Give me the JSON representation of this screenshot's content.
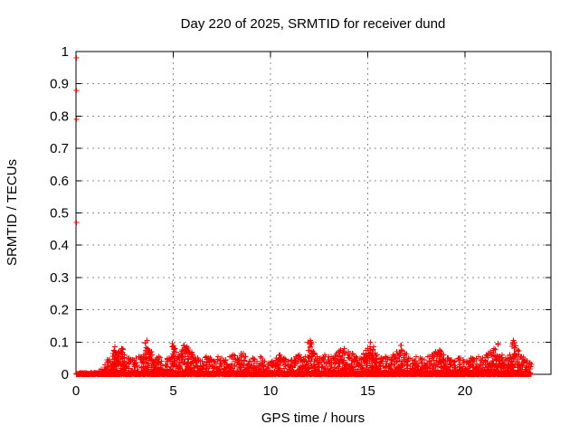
{
  "chart": {
    "title": "Day 220 of 2025, SRMTID for receiver dund",
    "xlabel": "GPS time / hours",
    "ylabel": "SRMTID / TECUs"
  },
  "chart_data": {
    "type": "scatter",
    "title": "Day 220 of 2025, SRMTID for receiver dund",
    "xlabel": "GPS time / hours",
    "ylabel": "SRMTID / TECUs",
    "marker": "plus",
    "marker_color": "#ff0000",
    "border_color": "#000000",
    "grid_color": "#8c8c8c",
    "grid": true,
    "legend": "none",
    "xlim": [
      0,
      24.42
    ],
    "ylim": [
      0,
      1
    ],
    "x_ticks": [
      0,
      5,
      10,
      15,
      20
    ],
    "x_tick_labels": [
      "0",
      "5",
      "10",
      "15",
      "20"
    ],
    "y_ticks": [
      0,
      0.1,
      0.2,
      0.3,
      0.4,
      0.5,
      0.6,
      0.7,
      0.8,
      0.9,
      1
    ],
    "y_tick_labels": [
      "0",
      "0.1",
      "0.2",
      "0.3",
      "0.4",
      "0.5",
      "0.6",
      "0.7",
      "0.8",
      "0.9",
      "1"
    ],
    "outlier_points": [
      [
        0.02,
        0.98
      ],
      [
        0.02,
        0.88
      ],
      [
        0.02,
        0.79
      ],
      [
        0.02,
        0.47
      ]
    ],
    "baseline_band": {
      "x_start": 0.02,
      "x_end": 23.38,
      "x_step": 0.009,
      "y_max": 0.0065
    },
    "scatter_envelope": [
      [
        1.3,
        0.015
      ],
      [
        1.5,
        0.03
      ],
      [
        1.7,
        0.045
      ],
      [
        1.9,
        0.065
      ],
      [
        2.0,
        0.085
      ],
      [
        2.2,
        0.07
      ],
      [
        2.35,
        0.08
      ],
      [
        2.5,
        0.06
      ],
      [
        2.7,
        0.05
      ],
      [
        2.9,
        0.045
      ],
      [
        3.1,
        0.05
      ],
      [
        3.3,
        0.055
      ],
      [
        3.5,
        0.06
      ],
      [
        3.65,
        0.105
      ],
      [
        3.8,
        0.07
      ],
      [
        3.95,
        0.04
      ],
      [
        4.1,
        0.045
      ],
      [
        4.25,
        0.055
      ],
      [
        4.4,
        0.04
      ],
      [
        4.6,
        0.03
      ],
      [
        4.8,
        0.05
      ],
      [
        4.95,
        0.095
      ],
      [
        5.1,
        0.08
      ],
      [
        5.25,
        0.055
      ],
      [
        5.4,
        0.065
      ],
      [
        5.55,
        0.09
      ],
      [
        5.7,
        0.085
      ],
      [
        5.85,
        0.07
      ],
      [
        6.0,
        0.06
      ],
      [
        6.15,
        0.05
      ],
      [
        6.3,
        0.045
      ],
      [
        6.5,
        0.04
      ],
      [
        6.7,
        0.055
      ],
      [
        6.9,
        0.05
      ],
      [
        7.1,
        0.04
      ],
      [
        7.3,
        0.055
      ],
      [
        7.5,
        0.05
      ],
      [
        7.7,
        0.045
      ],
      [
        7.9,
        0.055
      ],
      [
        8.1,
        0.06
      ],
      [
        8.3,
        0.05
      ],
      [
        8.5,
        0.065
      ],
      [
        8.7,
        0.055
      ],
      [
        8.9,
        0.04
      ],
      [
        9.1,
        0.05
      ],
      [
        9.3,
        0.04
      ],
      [
        9.5,
        0.055
      ],
      [
        9.7,
        0.04
      ],
      [
        9.9,
        0.035
      ],
      [
        10.1,
        0.04
      ],
      [
        10.3,
        0.05
      ],
      [
        10.5,
        0.06
      ],
      [
        10.7,
        0.05
      ],
      [
        10.9,
        0.04
      ],
      [
        11.1,
        0.045
      ],
      [
        11.3,
        0.055
      ],
      [
        11.5,
        0.06
      ],
      [
        11.7,
        0.045
      ],
      [
        11.9,
        0.055
      ],
      [
        12.05,
        0.105
      ],
      [
        12.2,
        0.07
      ],
      [
        12.4,
        0.055
      ],
      [
        12.6,
        0.05
      ],
      [
        12.8,
        0.06
      ],
      [
        13.0,
        0.055
      ],
      [
        13.2,
        0.05
      ],
      [
        13.4,
        0.065
      ],
      [
        13.6,
        0.075
      ],
      [
        13.8,
        0.08
      ],
      [
        14.0,
        0.07
      ],
      [
        14.2,
        0.065
      ],
      [
        14.4,
        0.055
      ],
      [
        14.6,
        0.05
      ],
      [
        14.8,
        0.065
      ],
      [
        15.0,
        0.08
      ],
      [
        15.15,
        0.1
      ],
      [
        15.3,
        0.085
      ],
      [
        15.5,
        0.06
      ],
      [
        15.7,
        0.05
      ],
      [
        15.9,
        0.055
      ],
      [
        16.1,
        0.05
      ],
      [
        16.3,
        0.06
      ],
      [
        16.5,
        0.07
      ],
      [
        16.7,
        0.09
      ],
      [
        16.9,
        0.065
      ],
      [
        17.1,
        0.05
      ],
      [
        17.3,
        0.045
      ],
      [
        17.5,
        0.055
      ],
      [
        17.7,
        0.05
      ],
      [
        17.9,
        0.045
      ],
      [
        18.1,
        0.055
      ],
      [
        18.3,
        0.06
      ],
      [
        18.5,
        0.07
      ],
      [
        18.7,
        0.075
      ],
      [
        18.9,
        0.06
      ],
      [
        19.1,
        0.05
      ],
      [
        19.3,
        0.045
      ],
      [
        19.5,
        0.04
      ],
      [
        19.7,
        0.05
      ],
      [
        19.9,
        0.045
      ],
      [
        20.1,
        0.04
      ],
      [
        20.3,
        0.05
      ],
      [
        20.5,
        0.045
      ],
      [
        20.7,
        0.055
      ],
      [
        20.9,
        0.05
      ],
      [
        21.1,
        0.06
      ],
      [
        21.3,
        0.07
      ],
      [
        21.5,
        0.08
      ],
      [
        21.7,
        0.095
      ],
      [
        21.9,
        0.06
      ],
      [
        22.1,
        0.05
      ],
      [
        22.3,
        0.06
      ],
      [
        22.5,
        0.105
      ],
      [
        22.7,
        0.075
      ],
      [
        22.9,
        0.055
      ],
      [
        23.1,
        0.045
      ],
      [
        23.3,
        0.035
      ]
    ]
  }
}
